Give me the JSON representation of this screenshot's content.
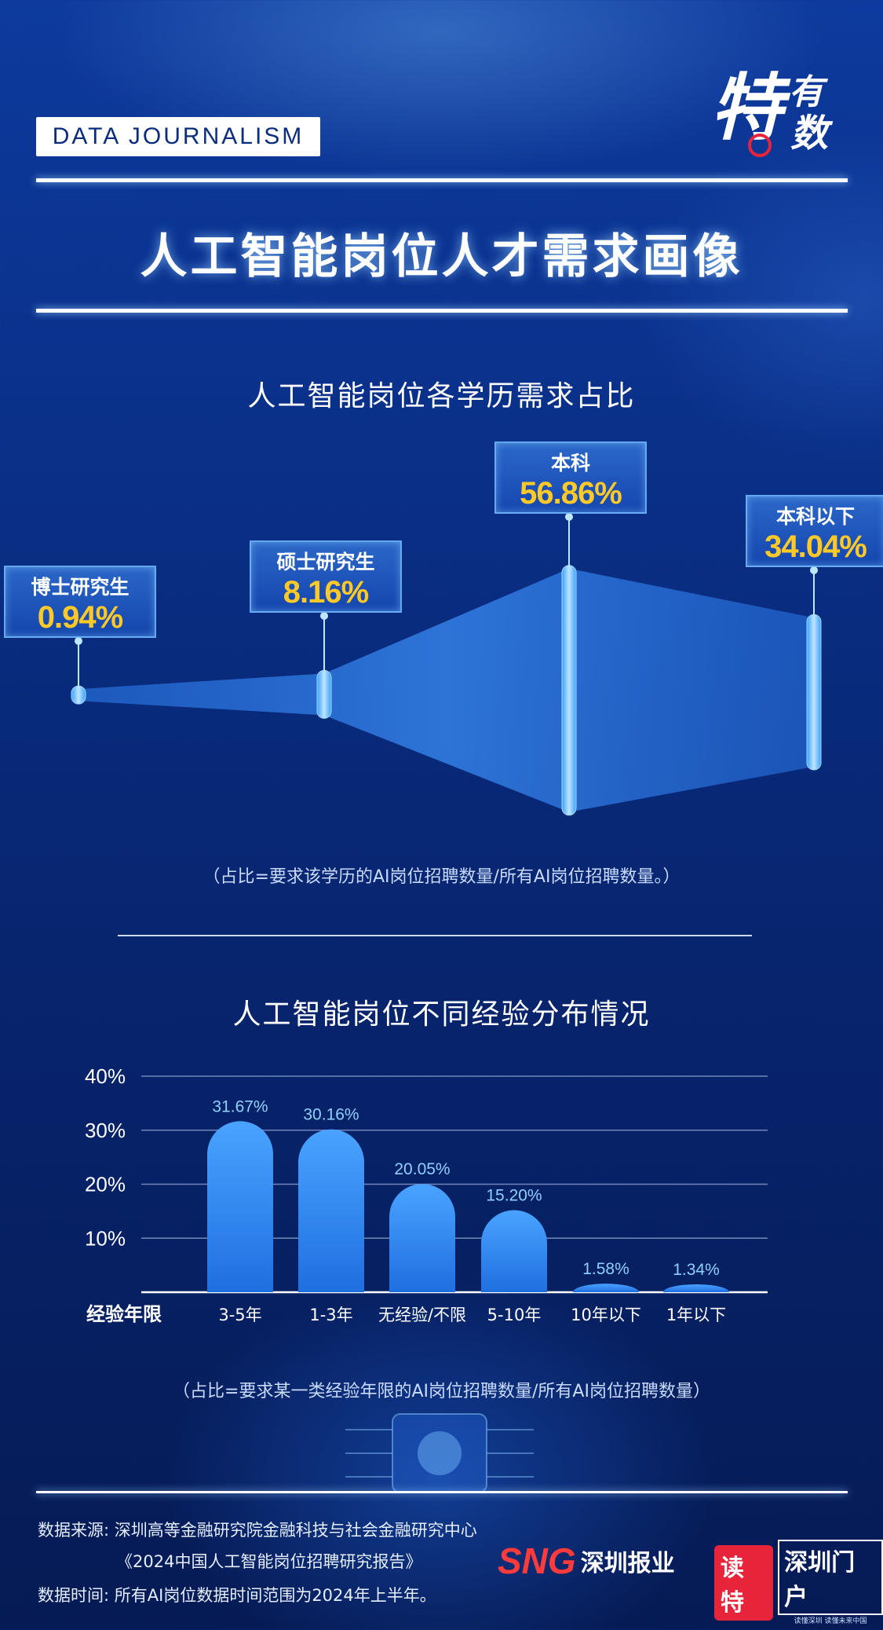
{
  "header": {
    "tag": "DATA JOURNALISM",
    "logo": {
      "char1": "特",
      "char2": "有",
      "char3": "数"
    },
    "title": "人工智能岗位人才需求画像"
  },
  "section1": {
    "title": "人工智能岗位各学历需求占比",
    "note": "（占比=要求该学历的AI岗位招聘数量/所有AI岗位招聘数量。）"
  },
  "section2": {
    "title": "人工智能岗位不同经验分布情况",
    "note": "（占比=要求某一类经验年限的AI岗位招聘数量/所有AI岗位招聘数量）"
  },
  "chart_data": [
    {
      "type": "area",
      "title": "人工智能岗位各学历需求占比",
      "categories": [
        "博士研究生",
        "硕士研究生",
        "本科",
        "本科以下"
      ],
      "values": [
        0.94,
        8.16,
        56.86,
        34.04
      ],
      "value_labels": [
        "0.94%",
        "8.16%",
        "56.86%",
        "34.04%"
      ],
      "colors": {
        "fill": "#2f7ff0",
        "label": "#ffc928"
      }
    },
    {
      "type": "bar",
      "title": "人工智能岗位不同经验分布情况",
      "xlabel": "经验年限",
      "categories": [
        "3-5年",
        "1-3年",
        "无经验/不限",
        "5-10年",
        "10年以下",
        "1年以下"
      ],
      "values": [
        31.67,
        30.16,
        20.05,
        15.2,
        1.58,
        1.34
      ],
      "value_labels": [
        "31.67%",
        "30.16%",
        "20.05%",
        "15.20%",
        "1.58%",
        "1.34%"
      ],
      "yticks": [
        "10%",
        "20%",
        "30%",
        "40%"
      ],
      "ylim": [
        0,
        40
      ],
      "grid": true,
      "colors": {
        "bar_top": "#4aa3ff",
        "bar_bottom": "#1f6fe0",
        "label": "#8fd0ff"
      }
    }
  ],
  "footer": {
    "source_label": "数据来源:",
    "source_org": "深圳高等金融研究院金融科技与社会金融研究中心",
    "source_report": "《2024中国人工智能岗位招聘研究报告》",
    "time_label": "数据时间:",
    "time_text": "所有AI岗位数据时间范围为2024年上半年。",
    "brand1_sng": "SNG",
    "brand1_name": "深圳报业",
    "brand2_dt": "读特",
    "brand2_mh": "深圳门户",
    "brand2_sub": "读懂深圳 读懂未来中国"
  }
}
